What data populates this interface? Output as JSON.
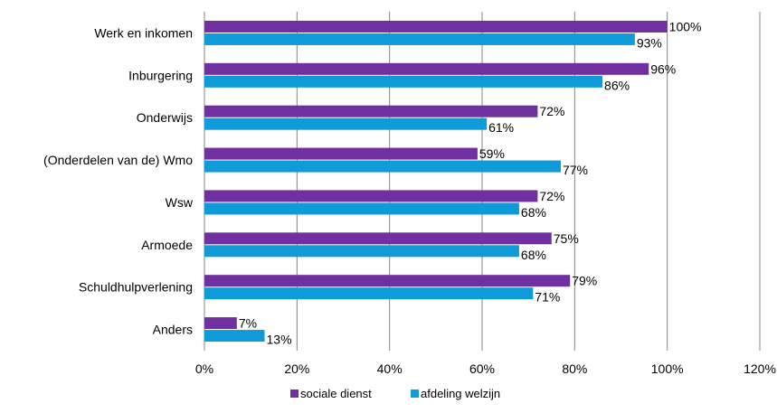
{
  "chart_data": {
    "type": "bar",
    "orientation": "horizontal",
    "categories": [
      "Werk en inkomen",
      "Inburgering",
      "Onderwijs",
      "(Onderdelen van de) Wmo",
      "Wsw",
      "Armoede",
      "Schuldhulpverlening",
      "Anders"
    ],
    "series": [
      {
        "name": "sociale dienst",
        "color": "#7030A0",
        "values": [
          100,
          96,
          72,
          59,
          72,
          75,
          79,
          7
        ],
        "labels": [
          "100%",
          "96%",
          "72%",
          "59%",
          "72%",
          "75%",
          "79%",
          "7%"
        ]
      },
      {
        "name": "afdeling welzijn",
        "color": "#0E9BD8",
        "values": [
          93,
          86,
          61,
          77,
          68,
          68,
          71,
          13
        ],
        "labels": [
          "93%",
          "86%",
          "61%",
          "77%",
          "68%",
          "68%",
          "71%",
          "13%"
        ]
      }
    ],
    "xlim": [
      0,
      120
    ],
    "xticks": [
      0,
      20,
      40,
      60,
      80,
      100,
      120
    ],
    "xtick_labels": [
      "0%",
      "20%",
      "40%",
      "60%",
      "80%",
      "100%",
      "120%"
    ],
    "grid": true,
    "legend_position": "bottom",
    "title": "",
    "xlabel": "",
    "ylabel": ""
  }
}
